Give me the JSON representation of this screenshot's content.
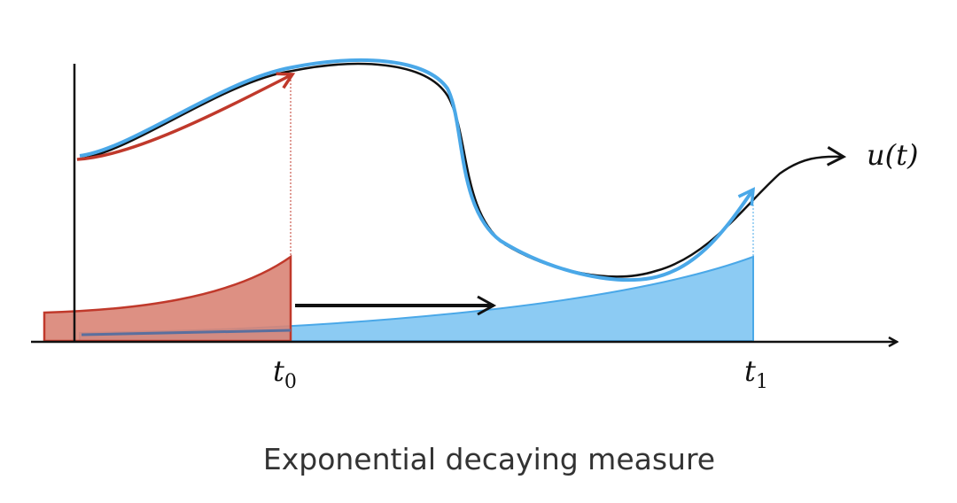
{
  "curve_label": "u(t)",
  "time_labels": [
    {
      "symbol": "t",
      "subscript": "0"
    },
    {
      "symbol": "t",
      "subscript": "1"
    }
  ],
  "caption": "Exponential decaying measure"
}
